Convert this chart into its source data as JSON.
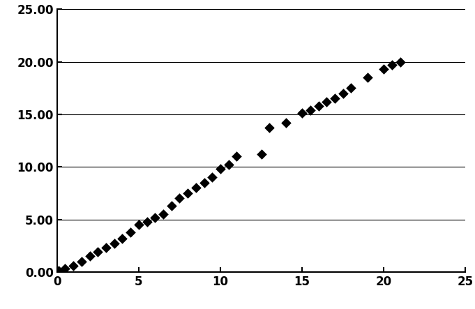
{
  "x_values": [
    0.1,
    0.5,
    1.0,
    1.5,
    2.0,
    2.5,
    3.0,
    3.5,
    4.0,
    4.5,
    5.0,
    5.5,
    6.0,
    6.5,
    7.0,
    7.5,
    8.0,
    8.5,
    9.0,
    9.5,
    10.0,
    10.5,
    11.0,
    12.5,
    13.0,
    14.0,
    15.0,
    15.5,
    16.0,
    16.5,
    17.0,
    17.5,
    18.0,
    19.0,
    20.0,
    20.5,
    21.0
  ],
  "y_values": [
    0.1,
    0.3,
    0.6,
    1.0,
    1.5,
    1.9,
    2.3,
    2.7,
    3.2,
    3.8,
    4.5,
    4.8,
    5.2,
    5.5,
    6.3,
    7.0,
    7.5,
    8.0,
    8.5,
    9.0,
    9.8,
    10.2,
    11.0,
    11.2,
    13.7,
    14.2,
    15.1,
    15.4,
    15.8,
    16.2,
    16.5,
    17.0,
    17.5,
    18.5,
    19.3,
    19.7,
    20.0
  ],
  "marker": "D",
  "marker_color": "#000000",
  "marker_size": 55,
  "xlim": [
    0,
    25
  ],
  "ylim": [
    0,
    25
  ],
  "xticks": [
    0,
    5,
    10,
    15,
    20,
    25
  ],
  "yticks": [
    0.0,
    5.0,
    10.0,
    15.0,
    20.0,
    25.0
  ],
  "ytick_labels": [
    "0.00",
    "5.00",
    "10.00",
    "15.00",
    "20.00",
    "25.00"
  ],
  "bg_color": "#ffffff",
  "spine_color": "#000000",
  "tick_label_fontsize": 12,
  "grid_color": "#000000",
  "grid_linewidth": 0.8
}
